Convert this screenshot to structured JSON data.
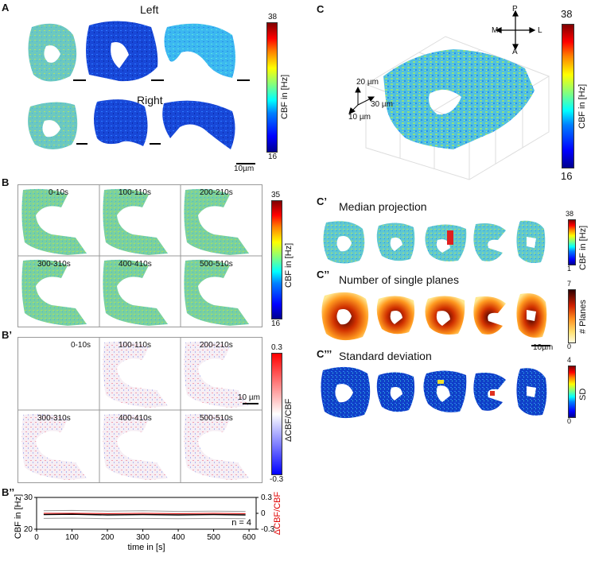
{
  "panel_labels": {
    "A": "A",
    "B": "B",
    "B1": "B’",
    "B2": "B’’",
    "C": "C",
    "C1": "C’",
    "C2": "C’’",
    "C3": "C’’’"
  },
  "panelA": {
    "title_left": "Left",
    "title_right": "Right",
    "colorbar": {
      "max": "38",
      "min": "16",
      "label": "CBF in [Hz]"
    },
    "scale": "10µm"
  },
  "panelB": {
    "frames": [
      "0-10s",
      "100-110s",
      "200-210s",
      "300-310s",
      "400-410s",
      "500-510s"
    ],
    "colorbar": {
      "max": "35",
      "min": "16",
      "label": "CBF in [Hz]"
    }
  },
  "panelB1": {
    "frames": [
      "0-10s",
      "100-110s",
      "200-210s",
      "300-310s",
      "400-410s",
      "500-510s"
    ],
    "colorbar": {
      "max": "0.3",
      "min": "-0.3",
      "label": "ΔCBF/CBF"
    },
    "scale": "10 µm"
  },
  "panelC": {
    "axes": {
      "P": "P",
      "A": "A",
      "M": "M",
      "L": "L"
    },
    "dims": [
      "20 µm",
      "30 µm",
      "10 µm"
    ],
    "colorbar": {
      "max": "38",
      "min": "16",
      "label": "CBF in [Hz]"
    }
  },
  "panelC1": {
    "title": "Median projection",
    "colorbar": {
      "max": "38",
      "min": "1",
      "label": "CBF in [Hz]"
    }
  },
  "panelC2": {
    "title": "Number of single planes",
    "colorbar": {
      "max": "7",
      "min": "0",
      "label": "# Planes"
    },
    "scale": "10µm"
  },
  "panelC3": {
    "title": "Standard deviation",
    "colorbar": {
      "max": "4",
      "min": "0",
      "label": "SD"
    }
  },
  "chart_data": {
    "type": "line",
    "xlabel": "time in [s]",
    "ylabel": "CBF in [Hz]",
    "y2label": "ΔCBF/CBF",
    "xlim": [
      0,
      620
    ],
    "ylim": [
      20,
      30
    ],
    "y2lim": [
      -0.3,
      0.3
    ],
    "xticks": [
      0,
      100,
      200,
      300,
      400,
      500,
      600
    ],
    "yticks": [
      20,
      30
    ],
    "y2ticks": [
      "0.3",
      "0",
      "-0.3"
    ],
    "annotation": "n = 4",
    "series": [
      {
        "color": "#000000",
        "axis": "left",
        "x": [
          20,
          100,
          200,
          300,
          400,
          500,
          590
        ],
        "y": [
          24.6,
          24.7,
          24.5,
          24.6,
          24.5,
          24.6,
          24.5
        ]
      },
      {
        "color": "#999999",
        "axis": "left",
        "x": [
          20,
          100,
          200,
          300,
          400,
          500,
          590
        ],
        "y": [
          25.8,
          25.9,
          25.7,
          25.8,
          25.6,
          25.7,
          25.6
        ]
      },
      {
        "color": "#999999",
        "axis": "left",
        "x": [
          20,
          100,
          200,
          300,
          400,
          500,
          590
        ],
        "y": [
          23.4,
          23.5,
          23.3,
          23.4,
          23.3,
          23.4,
          23.3
        ]
      },
      {
        "color": "#e00000",
        "axis": "right",
        "x": [
          20,
          100,
          200,
          300,
          400,
          500,
          590
        ],
        "y": [
          0.0,
          0.0,
          -0.005,
          0.0,
          -0.005,
          0.0,
          -0.005
        ]
      }
    ]
  }
}
